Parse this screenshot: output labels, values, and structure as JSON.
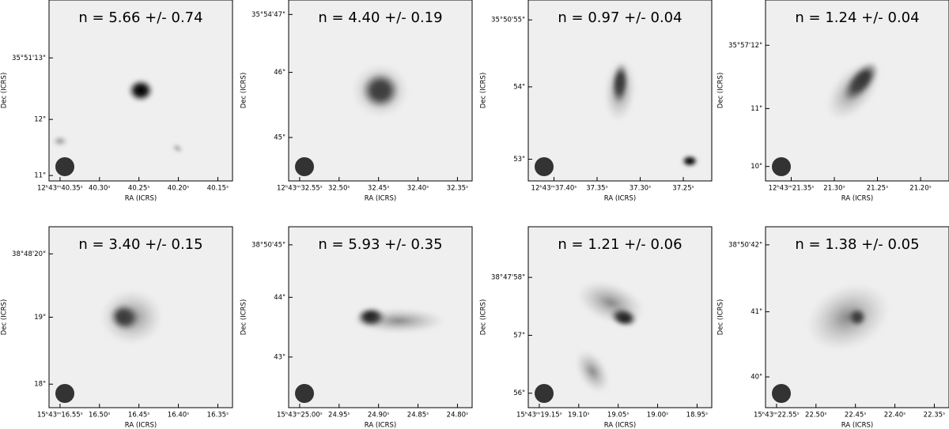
{
  "panels": [
    {
      "title": "n = 5.66 +/- 0.74",
      "ra_ticks": [
        "12ʰ43ᵐ40.35ˢ",
        "40.30ˢ",
        "40.25ˢ",
        "40.20ˢ",
        "40.15ˢ"
      ],
      "dec_ticks": [
        "35°51'13\"",
        "12\"",
        "11\""
      ],
      "xlabel": "RA (ICRS)",
      "ylabel": "Dec (ICRS)"
    },
    {
      "title": "n = 4.40 +/- 0.19",
      "ra_ticks": [
        "12ʰ43ᵐ32.55ˢ",
        "32.50ˢ",
        "32.45ˢ",
        "32.40ˢ",
        "32.35ˢ"
      ],
      "dec_ticks": [
        "35°54'47\"",
        "46\"",
        "45\""
      ],
      "xlabel": "RA (ICRS)",
      "ylabel": "Dec (ICRS)"
    },
    {
      "title": "n = 0.97 +/- 0.04",
      "ra_ticks": [
        "12ʰ43ᵐ37.40ˢ",
        "37.35ˢ",
        "37.30ˢ",
        "37.25ˢ"
      ],
      "dec_ticks": [
        "35°50'55\"",
        "54\"",
        "53\""
      ],
      "xlabel": "RA (ICRS)",
      "ylabel": "Dec (ICRS)"
    },
    {
      "title": "n = 1.24 +/- 0.04",
      "ra_ticks": [
        "12ʰ43ᵐ21.35ˢ",
        "21.30ˢ",
        "21.25ˢ",
        "21.20ˢ"
      ],
      "dec_ticks": [
        "35°57'12\"",
        "11\"",
        "10\""
      ],
      "xlabel": "RA (ICRS)",
      "ylabel": "Dec (ICRS)"
    },
    {
      "title": "n = 3.40 +/- 0.15",
      "ra_ticks": [
        "15ʰ43ᵐ16.55ˢ",
        "16.50ˢ",
        "16.45ˢ",
        "16.40ˢ",
        "16.35ˢ"
      ],
      "dec_ticks": [
        "38°48'20\"",
        "19\"",
        "18\""
      ],
      "xlabel": "RA (ICRS)",
      "ylabel": "Dec (ICRS)"
    },
    {
      "title": "n = 5.93 +/- 0.35",
      "ra_ticks": [
        "15ʰ43ᵐ25.00ˢ",
        "24.95ˢ",
        "24.90ˢ",
        "24.85ˢ",
        "24.80ˢ"
      ],
      "dec_ticks": [
        "38°50'45\"",
        "44\"",
        "43\""
      ],
      "xlabel": "RA (ICRS)",
      "ylabel": "Dec (ICRS)"
    },
    {
      "title": "n = 1.21 +/- 0.06",
      "ra_ticks": [
        "15ʰ43ᵐ19.15ˢ",
        "19.10ˢ",
        "19.05ˢ",
        "19.00ˢ",
        "18.95ˢ"
      ],
      "dec_ticks": [
        "38°47'58\"",
        "57\"",
        "56\""
      ],
      "xlabel": "RA (ICRS)",
      "ylabel": "Dec (ICRS)"
    },
    {
      "title": "n = 1.38 +/- 0.05",
      "ra_ticks": [
        "15ʰ43ᵐ22.55ˢ",
        "22.50ˢ",
        "22.45ˢ",
        "22.40ˢ",
        "22.35ˢ"
      ],
      "dec_ticks": [
        "38°50'42\"",
        "41\"",
        "40\""
      ],
      "xlabel": "RA (ICRS)",
      "ylabel": "Dec (ICRS)"
    }
  ]
}
